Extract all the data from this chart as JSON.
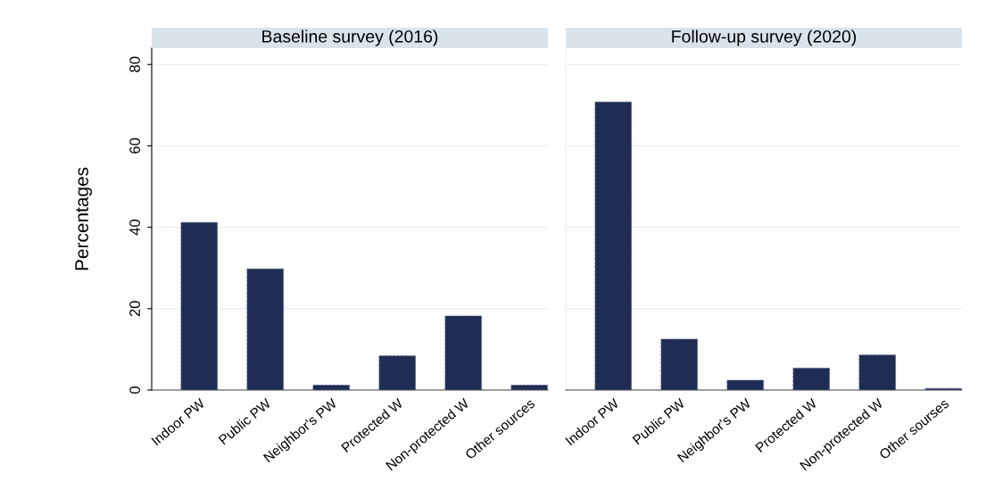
{
  "chart_data": [
    {
      "type": "bar",
      "title": "Baseline survey (2016)",
      "ylabel": "Percentages",
      "categories": [
        "Indoor PW",
        "Public PW",
        "Neighbor's PW",
        "Protected W",
        "Non-protected W",
        "Other sources"
      ],
      "values": [
        41.2,
        29.8,
        1.2,
        8.4,
        18.2,
        1.2
      ],
      "color": "#1f2d54",
      "ylim": [
        0,
        84
      ],
      "yticks": [
        0,
        20,
        40,
        60,
        80
      ],
      "grid": "y"
    },
    {
      "type": "bar",
      "title": "Follow-up survey (2020)",
      "categories": [
        "Indoor PW",
        "Public PW",
        "Neighbor's PW",
        "Protected W",
        "Non-protected W",
        "Other sourses"
      ],
      "values": [
        70.8,
        12.5,
        2.4,
        5.4,
        8.6,
        0.4
      ],
      "color": "#1f2d54",
      "ylim": [
        0,
        84
      ],
      "yticks": [
        0,
        20,
        40,
        60,
        80
      ],
      "grid": "y",
      "tick_labels": "x"
    }
  ]
}
